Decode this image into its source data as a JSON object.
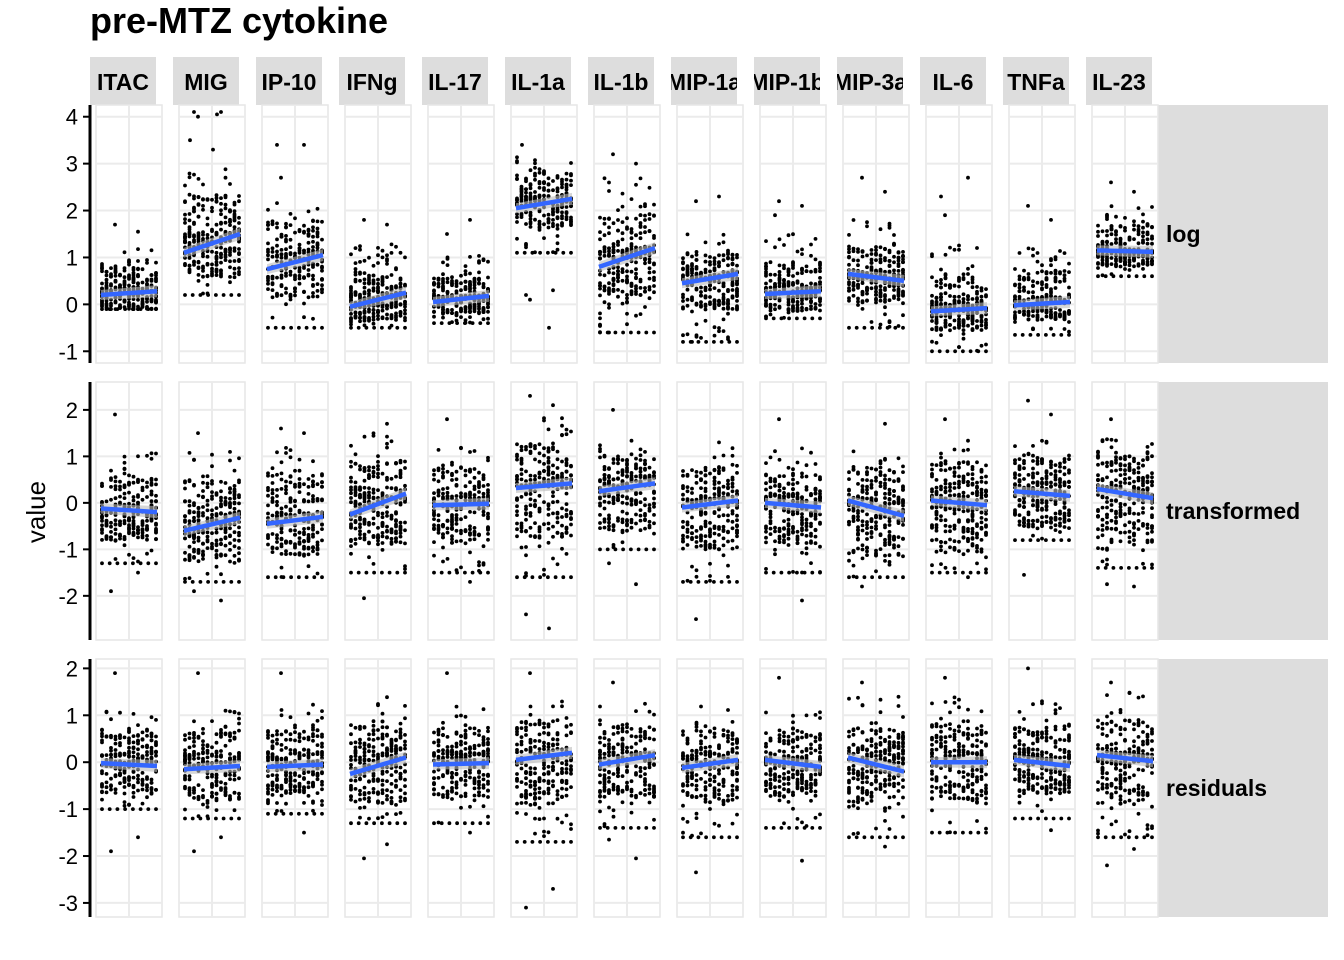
{
  "chart_data": {
    "type": "scatter",
    "title": "pre-MTZ cytokine",
    "ylabel": "value",
    "xlabel": "",
    "columns": [
      "ITAC",
      "MIG",
      "IP-10",
      "IFNg",
      "IL-17",
      "IL-1a",
      "IL-1b",
      "MIP-1a",
      "MIP-1b",
      "MIP-3a",
      "IL-6",
      "TNFa",
      "IL-23"
    ],
    "grid": true,
    "point_color": "#000000",
    "trend_color": "#3366ff",
    "ribbon_color": "#bbbbbb",
    "panel_background": "#ffffff",
    "strip_background": "#dddddd",
    "rows": [
      {
        "name": "log",
        "ylim": [
          -1.25,
          4.25
        ],
        "yticks": [
          -1,
          0,
          1,
          2,
          3,
          4
        ],
        "ytick_labels": [
          "-1",
          "0",
          "1",
          "2",
          "3",
          "4"
        ],
        "series": [
          {
            "column": "ITAC",
            "min": -0.1,
            "q1": 0.0,
            "median": 0.25,
            "q3": 0.6,
            "max": 1.2,
            "outliers": [
              1.7,
              1.55
            ],
            "trend": [
              0.2,
              0.28
            ]
          },
          {
            "column": "MIG",
            "min": 0.2,
            "q1": 0.8,
            "median": 1.3,
            "q3": 2.0,
            "max": 3.0,
            "outliers": [
              4.0,
              4.1,
              4.1,
              4.05,
              3.5,
              3.3
            ],
            "trend": [
              1.1,
              1.5
            ]
          },
          {
            "column": "IP-10",
            "min": -0.5,
            "q1": 0.4,
            "median": 0.9,
            "q3": 1.5,
            "max": 2.3,
            "outliers": [
              2.7,
              3.4,
              3.4
            ],
            "trend": [
              0.75,
              1.05
            ]
          },
          {
            "column": "IFNg",
            "min": -0.5,
            "q1": -0.2,
            "median": 0.15,
            "q3": 0.5,
            "max": 1.3,
            "outliers": [
              1.8,
              1.7
            ],
            "trend": [
              -0.05,
              0.25
            ]
          },
          {
            "column": "IL-17",
            "min": -0.4,
            "q1": -0.1,
            "median": 0.1,
            "q3": 0.4,
            "max": 1.1,
            "outliers": [
              1.5,
              1.8
            ],
            "trend": [
              0.05,
              0.18
            ]
          },
          {
            "column": "IL-1a",
            "min": 1.1,
            "q1": 1.8,
            "median": 2.15,
            "q3": 2.6,
            "max": 3.2,
            "outliers": [
              0.1,
              0.3,
              0.2,
              -0.5,
              3.4
            ],
            "trend": [
              2.05,
              2.25
            ]
          },
          {
            "column": "IL-1b",
            "min": -0.6,
            "q1": 0.4,
            "median": 0.95,
            "q3": 1.6,
            "max": 2.7,
            "outliers": [
              3.2,
              3.0,
              -0.6
            ],
            "trend": [
              0.8,
              1.2
            ]
          },
          {
            "column": "MIP-1a",
            "min": -0.8,
            "q1": 0.1,
            "median": 0.5,
            "q3": 0.9,
            "max": 1.5,
            "outliers": [
              2.2,
              2.3,
              -0.8
            ],
            "trend": [
              0.45,
              0.65
            ]
          },
          {
            "column": "MIP-1b",
            "min": -0.3,
            "q1": 0.0,
            "median": 0.3,
            "q3": 0.7,
            "max": 1.5,
            "outliers": [
              2.2,
              2.1,
              1.9
            ],
            "trend": [
              0.22,
              0.28
            ]
          },
          {
            "column": "MIP-3a",
            "min": -0.5,
            "q1": 0.2,
            "median": 0.55,
            "q3": 1.0,
            "max": 1.9,
            "outliers": [
              2.7,
              2.4
            ],
            "trend": [
              0.65,
              0.5
            ]
          },
          {
            "column": "IL-6",
            "min": -1.0,
            "q1": -0.4,
            "median": -0.1,
            "q3": 0.4,
            "max": 1.3,
            "outliers": [
              1.9,
              2.7,
              2.3
            ],
            "trend": [
              -0.15,
              -0.08
            ]
          },
          {
            "column": "TNFa",
            "min": -0.65,
            "q1": -0.2,
            "median": 0.05,
            "q3": 0.5,
            "max": 1.3,
            "outliers": [
              2.1,
              1.8
            ],
            "trend": [
              -0.02,
              0.05
            ]
          },
          {
            "column": "IL-23",
            "min": 0.6,
            "q1": 0.9,
            "median": 1.1,
            "q3": 1.5,
            "max": 2.1,
            "outliers": [
              2.6,
              2.4
            ],
            "trend": [
              1.15,
              1.12
            ]
          }
        ]
      },
      {
        "name": "transformed",
        "ylim": [
          -2.95,
          2.6
        ],
        "yticks": [
          -2,
          -1,
          0,
          1,
          2
        ],
        "ytick_labels": [
          "-2",
          "-1",
          "0",
          "1",
          "2"
        ],
        "series": [
          {
            "column": "ITAC",
            "min": -1.3,
            "q1": -0.6,
            "median": -0.15,
            "q3": 0.35,
            "max": 1.1,
            "outliers": [
              1.9,
              -1.5,
              -1.9
            ],
            "trend": [
              -0.12,
              -0.2
            ]
          },
          {
            "column": "MIG",
            "min": -1.7,
            "q1": -1.0,
            "median": -0.45,
            "q3": 0.2,
            "max": 1.1,
            "outliers": [
              1.5,
              -2.1,
              -1.9
            ],
            "trend": [
              -0.6,
              -0.32
            ]
          },
          {
            "column": "IP-10",
            "min": -1.6,
            "q1": -0.9,
            "median": -0.4,
            "q3": 0.3,
            "max": 1.2,
            "outliers": [
              1.6,
              1.5
            ],
            "trend": [
              -0.45,
              -0.3
            ]
          },
          {
            "column": "IFNg",
            "min": -1.5,
            "q1": -0.6,
            "median": 0.0,
            "q3": 0.6,
            "max": 1.5,
            "outliers": [
              -2.05,
              1.7
            ],
            "trend": [
              -0.25,
              0.2
            ]
          },
          {
            "column": "IL-17",
            "min": -1.5,
            "q1": -0.6,
            "median": -0.05,
            "q3": 0.5,
            "max": 1.2,
            "outliers": [
              1.8,
              -1.7
            ],
            "trend": [
              -0.05,
              -0.02
            ]
          },
          {
            "column": "IL-1a",
            "min": -1.6,
            "q1": -0.4,
            "median": 0.3,
            "q3": 1.0,
            "max": 1.9,
            "outliers": [
              2.3,
              2.1,
              -2.4,
              -2.7
            ],
            "trend": [
              0.32,
              0.42
            ]
          },
          {
            "column": "IL-1b",
            "min": -1.0,
            "q1": -0.3,
            "median": 0.3,
            "q3": 0.8,
            "max": 1.5,
            "outliers": [
              2.0,
              -1.75,
              -1.3
            ],
            "trend": [
              0.25,
              0.42
            ]
          },
          {
            "column": "MIP-1a",
            "min": -1.7,
            "q1": -0.7,
            "median": -0.1,
            "q3": 0.5,
            "max": 1.2,
            "outliers": [
              -2.5,
              1.3
            ],
            "trend": [
              -0.1,
              0.05
            ]
          },
          {
            "column": "MIP-1b",
            "min": -1.5,
            "q1": -0.6,
            "median": -0.05,
            "q3": 0.4,
            "max": 1.2,
            "outliers": [
              1.8,
              -2.1
            ],
            "trend": [
              0.0,
              -0.1
            ]
          },
          {
            "column": "MIP-3a",
            "min": -1.6,
            "q1": -0.8,
            "median": -0.1,
            "q3": 0.5,
            "max": 1.3,
            "outliers": [
              -1.8,
              1.7
            ],
            "trend": [
              0.05,
              -0.28
            ]
          },
          {
            "column": "IL-6",
            "min": -1.5,
            "q1": -0.7,
            "median": 0.0,
            "q3": 0.6,
            "max": 1.4,
            "outliers": [
              1.8,
              -1.6
            ],
            "trend": [
              0.05,
              -0.05
            ]
          },
          {
            "column": "TNFa",
            "min": -0.8,
            "q1": -0.3,
            "median": 0.2,
            "q3": 0.7,
            "max": 1.4,
            "outliers": [
              2.2,
              1.9,
              -1.55
            ],
            "trend": [
              0.25,
              0.15
            ]
          },
          {
            "column": "IL-23",
            "min": -1.4,
            "q1": -0.5,
            "median": 0.2,
            "q3": 0.8,
            "max": 1.6,
            "outliers": [
              1.8,
              -1.8,
              -1.75
            ],
            "trend": [
              0.3,
              0.1
            ]
          }
        ]
      },
      {
        "name": "residuals",
        "ylim": [
          -3.3,
          2.2
        ],
        "yticks": [
          -3,
          -2,
          -1,
          0,
          1,
          2
        ],
        "ytick_labels": [
          "-3",
          "-2",
          "-1",
          "0",
          "1",
          "2"
        ],
        "series": [
          {
            "column": "ITAC",
            "min": -1.0,
            "q1": -0.45,
            "median": 0.0,
            "q3": 0.45,
            "max": 1.1,
            "outliers": [
              1.9,
              -1.6,
              -1.9
            ],
            "trend": [
              -0.02,
              -0.08
            ]
          },
          {
            "column": "MIG",
            "min": -1.2,
            "q1": -0.55,
            "median": -0.05,
            "q3": 0.45,
            "max": 1.1,
            "outliers": [
              1.9,
              -1.6,
              -1.9
            ],
            "trend": [
              -0.15,
              -0.08
            ]
          },
          {
            "column": "IP-10",
            "min": -1.1,
            "q1": -0.45,
            "median": 0.0,
            "q3": 0.5,
            "max": 1.3,
            "outliers": [
              1.9,
              -1.5
            ],
            "trend": [
              -0.1,
              -0.05
            ]
          },
          {
            "column": "IFNg",
            "min": -1.3,
            "q1": -0.6,
            "median": 0.0,
            "q3": 0.6,
            "max": 1.4,
            "outliers": [
              -2.05,
              -1.75
            ],
            "trend": [
              -0.25,
              0.1
            ]
          },
          {
            "column": "IL-17",
            "min": -1.3,
            "q1": -0.5,
            "median": 0.0,
            "q3": 0.5,
            "max": 1.2,
            "outliers": [
              1.9,
              -1.5
            ],
            "trend": [
              -0.05,
              -0.02
            ]
          },
          {
            "column": "IL-1a",
            "min": -1.7,
            "q1": -0.6,
            "median": 0.0,
            "q3": 0.6,
            "max": 1.5,
            "outliers": [
              1.9,
              -2.7,
              -3.1
            ],
            "trend": [
              0.05,
              0.2
            ]
          },
          {
            "column": "IL-1b",
            "min": -1.4,
            "q1": -0.5,
            "median": 0.0,
            "q3": 0.55,
            "max": 1.3,
            "outliers": [
              1.7,
              -2.05,
              -1.65
            ],
            "trend": [
              -0.05,
              0.15
            ]
          },
          {
            "column": "MIP-1a",
            "min": -1.6,
            "q1": -0.6,
            "median": -0.05,
            "q3": 0.45,
            "max": 1.2,
            "outliers": [
              -2.35
            ],
            "trend": [
              -0.12,
              0.05
            ]
          },
          {
            "column": "MIP-1b",
            "min": -1.4,
            "q1": -0.5,
            "median": 0.0,
            "q3": 0.45,
            "max": 1.1,
            "outliers": [
              1.8,
              -2.1
            ],
            "trend": [
              0.05,
              -0.1
            ]
          },
          {
            "column": "MIP-3a",
            "min": -1.6,
            "q1": -0.6,
            "median": 0.0,
            "q3": 0.5,
            "max": 1.4,
            "outliers": [
              1.7,
              -1.8
            ],
            "trend": [
              0.1,
              -0.2
            ]
          },
          {
            "column": "IL-6",
            "min": -1.5,
            "q1": -0.55,
            "median": 0.0,
            "q3": 0.55,
            "max": 1.4,
            "outliers": [
              1.8
            ],
            "trend": [
              0.0,
              0.0
            ]
          },
          {
            "column": "TNFa",
            "min": -1.2,
            "q1": -0.45,
            "median": 0.0,
            "q3": 0.5,
            "max": 1.3,
            "outliers": [
              2.0,
              -1.45
            ],
            "trend": [
              0.05,
              -0.08
            ]
          },
          {
            "column": "IL-23",
            "min": -1.6,
            "q1": -0.6,
            "median": 0.0,
            "q3": 0.6,
            "max": 1.5,
            "outliers": [
              1.7,
              -1.85,
              -2.2
            ],
            "trend": [
              0.15,
              0.02
            ]
          }
        ]
      }
    ]
  }
}
